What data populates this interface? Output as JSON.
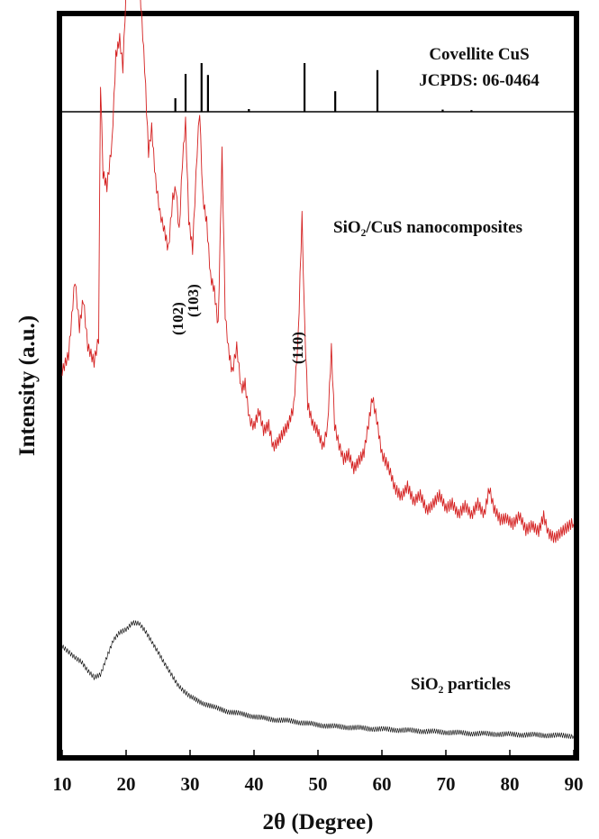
{
  "chart_data": {
    "type": "line",
    "xlabel": "2θ (Degree)",
    "ylabel": "Intensity (a.u.)",
    "xlim": [
      10,
      90
    ],
    "xticks": [
      "10",
      "20",
      "30",
      "40",
      "50",
      "60",
      "70",
      "80",
      "90"
    ],
    "grid": false,
    "legend": "none",
    "reference": {
      "name_line1": "Covellite CuS",
      "name_line2": "JCPDS: 06-0464",
      "color": "#000000",
      "sticks": [
        {
          "x": 27.7,
          "h": 0.25
        },
        {
          "x": 29.3,
          "h": 0.7
        },
        {
          "x": 31.8,
          "h": 0.9
        },
        {
          "x": 32.8,
          "h": 0.68
        },
        {
          "x": 39.2,
          "h": 0.05
        },
        {
          "x": 47.9,
          "h": 0.9
        },
        {
          "x": 52.7,
          "h": 0.38
        },
        {
          "x": 59.3,
          "h": 0.77
        },
        {
          "x": 69.5,
          "h": 0.04
        },
        {
          "x": 74.0,
          "h": 0.03
        }
      ]
    },
    "series": [
      {
        "name": "SiO₂/CuS nanocomposites",
        "color": "#d42020",
        "points": [
          [
            10,
            0.55
          ],
          [
            11,
            0.6
          ],
          [
            12,
            0.82
          ],
          [
            12.7,
            0.68
          ],
          [
            13.3,
            0.76
          ],
          [
            14,
            0.62
          ],
          [
            15,
            0.58
          ],
          [
            15.7,
            0.65
          ],
          [
            16,
            1.38
          ],
          [
            16.4,
            1.12
          ],
          [
            17,
            1.08
          ],
          [
            17.8,
            1.2
          ],
          [
            18.4,
            1.45
          ],
          [
            19,
            1.5
          ],
          [
            19.5,
            1.42
          ],
          [
            20,
            1.64
          ],
          [
            20.6,
            1.78
          ],
          [
            21.1,
            1.66
          ],
          [
            21.7,
            1.76
          ],
          [
            22.3,
            1.6
          ],
          [
            22.9,
            1.42
          ],
          [
            23.5,
            1.18
          ],
          [
            24,
            1.25
          ],
          [
            24.6,
            1.1
          ],
          [
            25.3,
            1.0
          ],
          [
            26,
            0.95
          ],
          [
            26.6,
            0.9
          ],
          [
            27.3,
            1.05
          ],
          [
            27.8,
            1.08
          ],
          [
            28.3,
            0.95
          ],
          [
            28.8,
            1.15
          ],
          [
            29.3,
            1.26
          ],
          [
            29.8,
            0.98
          ],
          [
            30.4,
            0.9
          ],
          [
            31.1,
            1.18
          ],
          [
            31.5,
            1.3
          ],
          [
            32,
            1.05
          ],
          [
            32.6,
            0.98
          ],
          [
            33.2,
            0.82
          ],
          [
            33.8,
            0.78
          ],
          [
            34.4,
            0.68
          ],
          [
            35,
            1.18
          ],
          [
            35.5,
            0.72
          ],
          [
            36,
            0.62
          ],
          [
            36.6,
            0.55
          ],
          [
            37.3,
            0.62
          ],
          [
            38,
            0.5
          ],
          [
            38.6,
            0.52
          ],
          [
            39.3,
            0.42
          ],
          [
            40,
            0.4
          ],
          [
            40.8,
            0.44
          ],
          [
            41.5,
            0.38
          ],
          [
            42.3,
            0.4
          ],
          [
            43,
            0.34
          ],
          [
            43.8,
            0.36
          ],
          [
            44.6,
            0.38
          ],
          [
            45.4,
            0.4
          ],
          [
            46.2,
            0.45
          ],
          [
            46.9,
            0.65
          ],
          [
            47.5,
            1.0
          ],
          [
            47.9,
            0.7
          ],
          [
            48.4,
            0.46
          ],
          [
            49.2,
            0.4
          ],
          [
            50,
            0.38
          ],
          [
            50.8,
            0.34
          ],
          [
            51.5,
            0.4
          ],
          [
            52.1,
            0.62
          ],
          [
            52.6,
            0.4
          ],
          [
            53.3,
            0.34
          ],
          [
            54,
            0.3
          ],
          [
            54.8,
            0.32
          ],
          [
            55.6,
            0.28
          ],
          [
            56.4,
            0.3
          ],
          [
            57.2,
            0.32
          ],
          [
            57.9,
            0.4
          ],
          [
            58.5,
            0.48
          ],
          [
            59.2,
            0.42
          ],
          [
            60,
            0.32
          ],
          [
            61,
            0.28
          ],
          [
            62,
            0.22
          ],
          [
            63,
            0.2
          ],
          [
            64,
            0.23
          ],
          [
            65,
            0.18
          ],
          [
            66,
            0.2
          ],
          [
            67,
            0.16
          ],
          [
            68,
            0.18
          ],
          [
            69,
            0.2
          ],
          [
            70,
            0.16
          ],
          [
            71,
            0.18
          ],
          [
            72,
            0.15
          ],
          [
            73,
            0.17
          ],
          [
            74,
            0.14
          ],
          [
            75,
            0.18
          ],
          [
            76,
            0.15
          ],
          [
            76.8,
            0.22
          ],
          [
            77.5,
            0.16
          ],
          [
            78.5,
            0.13
          ],
          [
            79.5,
            0.14
          ],
          [
            80.5,
            0.12
          ],
          [
            81.5,
            0.14
          ],
          [
            82.5,
            0.1
          ],
          [
            83.5,
            0.12
          ],
          [
            84.5,
            0.1
          ],
          [
            85.3,
            0.14
          ],
          [
            86,
            0.09
          ],
          [
            87,
            0.08
          ],
          [
            88,
            0.1
          ],
          [
            89,
            0.11
          ],
          [
            90,
            0.12
          ]
        ]
      },
      {
        "name": "SiO₂  particles",
        "color": "#000000",
        "points": [
          [
            10,
            0.8
          ],
          [
            11,
            0.76
          ],
          [
            12,
            0.72
          ],
          [
            13,
            0.68
          ],
          [
            14,
            0.6
          ],
          [
            15,
            0.55
          ],
          [
            16,
            0.58
          ],
          [
            17,
            0.72
          ],
          [
            18,
            0.85
          ],
          [
            19,
            0.92
          ],
          [
            20,
            0.95
          ],
          [
            21,
            1.0
          ],
          [
            22,
            0.99
          ],
          [
            23,
            0.93
          ],
          [
            24,
            0.85
          ],
          [
            25,
            0.76
          ],
          [
            26,
            0.66
          ],
          [
            27,
            0.58
          ],
          [
            28,
            0.5
          ],
          [
            29,
            0.44
          ],
          [
            30,
            0.39
          ],
          [
            32,
            0.34
          ],
          [
            34,
            0.3
          ],
          [
            36,
            0.27
          ],
          [
            38,
            0.25
          ],
          [
            40,
            0.23
          ],
          [
            42,
            0.21
          ],
          [
            44,
            0.2
          ],
          [
            46,
            0.19
          ],
          [
            48,
            0.175
          ],
          [
            50,
            0.16
          ],
          [
            52,
            0.15
          ],
          [
            55,
            0.14
          ],
          [
            58,
            0.13
          ],
          [
            62,
            0.12
          ],
          [
            66,
            0.11
          ],
          [
            70,
            0.1
          ],
          [
            74,
            0.09
          ],
          [
            78,
            0.085
          ],
          [
            82,
            0.08
          ],
          [
            86,
            0.075
          ],
          [
            90,
            0.07
          ]
        ]
      }
    ]
  },
  "peak_labels": [
    {
      "text": "(102)",
      "x": 28.9
    },
    {
      "text": "(103)",
      "x": 31.3
    },
    {
      "text": "(110)",
      "x": 47.6
    }
  ]
}
